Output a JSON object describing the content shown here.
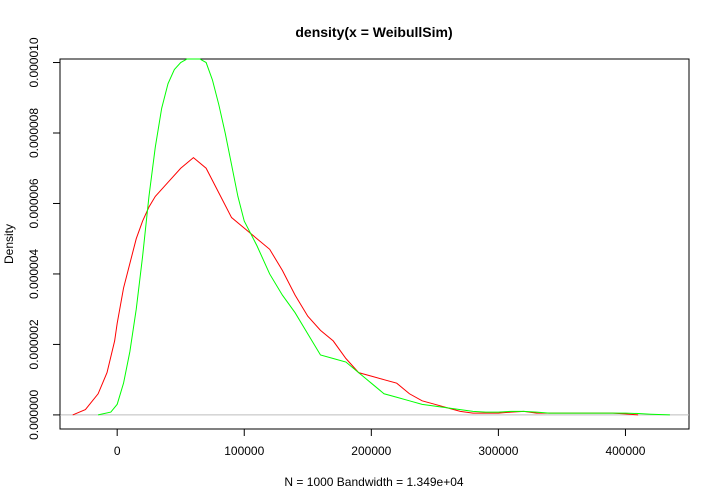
{
  "chart_data": {
    "type": "line",
    "title": "density(x = WeibullSim)",
    "xlabel": "N = 1000   Bandwidth = 1.349e+04",
    "ylabel": "Density",
    "xlim": [
      -45000,
      450000
    ],
    "ylim": [
      -4e-07,
      1.01e-05
    ],
    "x_ticks": [
      0,
      100000,
      200000,
      300000,
      400000
    ],
    "x_tick_labels": [
      "0",
      "100000",
      "200000",
      "300000",
      "400000"
    ],
    "y_ticks": [
      0,
      2e-06,
      4e-06,
      6e-06,
      8e-06,
      1e-05
    ],
    "y_tick_labels": [
      "0.000000",
      "0.000002",
      "0.000004",
      "0.000006",
      "0.000008",
      "0.000010"
    ],
    "baseline": 0,
    "baseline_color": "#bebebe",
    "grid": false,
    "legend": "none",
    "series": [
      {
        "color": "#ff0000",
        "x": [
          -35000,
          -25000,
          -15000,
          -8000,
          -2000,
          0,
          5000,
          10000,
          15000,
          20000,
          25000,
          30000,
          40000,
          50000,
          60000,
          70000,
          80000,
          90000,
          100000,
          110000,
          120000,
          130000,
          140000,
          150000,
          160000,
          170000,
          180000,
          190000,
          200000,
          210000,
          220000,
          230000,
          240000,
          250000,
          260000,
          270000,
          280000,
          290000,
          300000,
          310000,
          320000,
          330000,
          340000,
          350000,
          360000,
          370000,
          380000,
          390000,
          400000,
          410000
        ],
        "y": [
          0.0,
          1.5e-07,
          6e-07,
          1.2e-06,
          2.1e-06,
          2.6e-06,
          3.6e-06,
          4.3e-06,
          5e-06,
          5.5e-06,
          5.9e-06,
          6.2e-06,
          6.6e-06,
          7e-06,
          7.3e-06,
          7e-06,
          6.3e-06,
          5.6e-06,
          5.3e-06,
          5e-06,
          4.7e-06,
          4.1e-06,
          3.4e-06,
          2.8e-06,
          2.4e-06,
          2.1e-06,
          1.6e-06,
          1.2e-06,
          1.1e-06,
          1e-06,
          9e-07,
          6e-07,
          4e-07,
          3e-07,
          2e-07,
          1e-07,
          5e-08,
          5e-08,
          5e-08,
          8e-08,
          1e-07,
          5e-08,
          5e-08,
          5e-08,
          5e-08,
          5e-08,
          5e-08,
          5e-08,
          3e-08,
          0.0
        ]
      },
      {
        "color": "#00ff00",
        "x": [
          -15000,
          -5000,
          0,
          5000,
          10000,
          15000,
          20000,
          25000,
          30000,
          35000,
          40000,
          45000,
          50000,
          55000,
          60000,
          65000,
          70000,
          75000,
          80000,
          85000,
          90000,
          95000,
          100000,
          110000,
          120000,
          130000,
          140000,
          150000,
          160000,
          170000,
          180000,
          190000,
          200000,
          210000,
          220000,
          230000,
          240000,
          250000,
          260000,
          270000,
          280000,
          290000,
          300000,
          310000,
          320000,
          330000,
          340000,
          350000,
          360000,
          370000,
          380000,
          390000,
          400000,
          410000,
          420000,
          435000
        ],
        "y": [
          0.0,
          8e-08,
          3e-07,
          9e-07,
          1.8e-06,
          3e-06,
          4.5e-06,
          6.2e-06,
          7.6e-06,
          8.7e-06,
          9.4e-06,
          9.8e-06,
          1e-05,
          1.01e-05,
          1.01e-05,
          1.01e-05,
          1e-05,
          9.5e-06,
          8.8e-06,
          8e-06,
          7.1e-06,
          6.2e-06,
          5.5e-06,
          4.8e-06,
          4e-06,
          3.4e-06,
          2.9e-06,
          2.3e-06,
          1.7e-06,
          1.6e-06,
          1.5e-06,
          1.2e-06,
          9e-07,
          6e-07,
          5e-07,
          4e-07,
          3e-07,
          2.5e-07,
          2e-07,
          1.5e-07,
          1e-07,
          8e-08,
          8e-08,
          1e-07,
          1e-07,
          8e-08,
          5e-08,
          5e-08,
          5e-08,
          5e-08,
          5e-08,
          5e-08,
          5e-08,
          4e-08,
          2e-08,
          0.0
        ]
      }
    ]
  }
}
